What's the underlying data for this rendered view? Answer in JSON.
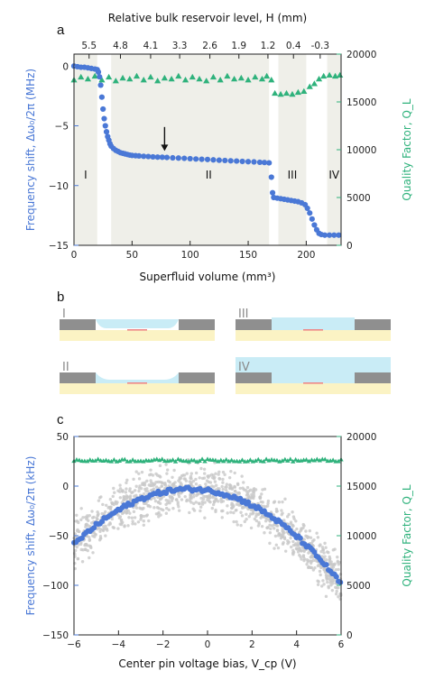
{
  "colors": {
    "blue": "#4a78d6",
    "green": "#2fb27c",
    "grey_scatter": "#c8c8c8",
    "region_fill": "#efefe9",
    "substrate": "#fbf3c4",
    "metal": "#8f8f8f",
    "helium": "#c9ecf6",
    "pin": "#ee8888"
  },
  "panel_letters": {
    "a": "a",
    "b": "b",
    "c": "c"
  },
  "chart_data": [
    {
      "type": "scatter",
      "panel": "a",
      "title": "",
      "xlabel": "Superfluid volume (mm³)",
      "ylabel": "Frequency shift, Δω₀/2π (MHz)",
      "y2label": "Quality Factor, Q_L",
      "toplabel": "Relative bulk reservoir level, H (mm)",
      "xlim": [
        0,
        230
      ],
      "ylim": [
        -15,
        1
      ],
      "y2lim": [
        0,
        20000
      ],
      "xticks": [
        0,
        50,
        100,
        150,
        200
      ],
      "xtick_labels": [
        "0",
        "50",
        "100",
        "150",
        "200"
      ],
      "yticks": [
        0,
        -5,
        -10,
        -15
      ],
      "ytick_labels": [
        "0",
        "−5",
        "−10",
        "−15"
      ],
      "y2ticks": [
        0,
        5000,
        10000,
        15000,
        20000
      ],
      "y2tick_labels": [
        "0",
        "5000",
        "10000",
        "15000",
        "20000"
      ],
      "top_ticks": [
        {
          "x": 13,
          "label": "5.5"
        },
        {
          "x": 40,
          "label": "4.8"
        },
        {
          "x": 66,
          "label": "4.1"
        },
        {
          "x": 91,
          "label": "3.3"
        },
        {
          "x": 117,
          "label": "2.6"
        },
        {
          "x": 142,
          "label": "1.9"
        },
        {
          "x": 167,
          "label": "1.2"
        },
        {
          "x": 189,
          "label": "0.4"
        },
        {
          "x": 212,
          "label": "-0.3"
        }
      ],
      "regions": [
        {
          "label": "I",
          "x0": 0,
          "x1": 20,
          "label_x": 10,
          "label_y": -9.4
        },
        {
          "label": "II",
          "x0": 32,
          "x1": 168,
          "label_x": 116,
          "label_y": -9.4
        },
        {
          "label": "III",
          "x0": 176,
          "x1": 200,
          "label_x": 188,
          "label_y": -9.4
        },
        {
          "label": "IV",
          "x0": 218,
          "x1": 230,
          "label_x": 224,
          "label_y": -9.4
        }
      ],
      "arrow": {
        "x": 78,
        "y_tail": -5.1,
        "y_head": -7.1
      },
      "series": [
        {
          "name": "",
          "axis": "left",
          "color": "blue",
          "marker": "circle",
          "points": [
            [
              0,
              0
            ],
            [
              3,
              -0.05
            ],
            [
              6,
              -0.1
            ],
            [
              9,
              -0.1
            ],
            [
              12,
              -0.15
            ],
            [
              15,
              -0.2
            ],
            [
              18,
              -0.25
            ],
            [
              20,
              -0.3
            ],
            [
              21,
              -0.5
            ],
            [
              22,
              -0.9
            ],
            [
              23,
              -1.6
            ],
            [
              24,
              -2.6
            ],
            [
              25,
              -3.6
            ],
            [
              26,
              -4.4
            ],
            [
              27,
              -5.0
            ],
            [
              28,
              -5.5
            ],
            [
              29,
              -5.9
            ],
            [
              30,
              -6.2
            ],
            [
              31,
              -6.5
            ],
            [
              32,
              -6.7
            ],
            [
              34,
              -6.9
            ],
            [
              36,
              -7.05
            ],
            [
              38,
              -7.15
            ],
            [
              40,
              -7.25
            ],
            [
              42,
              -7.3
            ],
            [
              44,
              -7.35
            ],
            [
              46,
              -7.4
            ],
            [
              48,
              -7.45
            ],
            [
              50,
              -7.48
            ],
            [
              53,
              -7.5
            ],
            [
              56,
              -7.52
            ],
            [
              60,
              -7.55
            ],
            [
              64,
              -7.57
            ],
            [
              68,
              -7.6
            ],
            [
              72,
              -7.62
            ],
            [
              76,
              -7.63
            ],
            [
              80,
              -7.65
            ],
            [
              85,
              -7.68
            ],
            [
              90,
              -7.7
            ],
            [
              95,
              -7.72
            ],
            [
              100,
              -7.75
            ],
            [
              105,
              -7.78
            ],
            [
              110,
              -7.8
            ],
            [
              115,
              -7.82
            ],
            [
              120,
              -7.85
            ],
            [
              125,
              -7.88
            ],
            [
              130,
              -7.9
            ],
            [
              135,
              -7.93
            ],
            [
              140,
              -7.95
            ],
            [
              145,
              -7.98
            ],
            [
              150,
              -8.0
            ],
            [
              155,
              -8.02
            ],
            [
              160,
              -8.05
            ],
            [
              164,
              -8.07
            ],
            [
              168,
              -8.1
            ],
            [
              170,
              -9.3
            ],
            [
              171,
              -10.6
            ],
            [
              172,
              -11.0
            ],
            [
              175,
              -11.05
            ],
            [
              178,
              -11.1
            ],
            [
              181,
              -11.15
            ],
            [
              184,
              -11.2
            ],
            [
              187,
              -11.25
            ],
            [
              190,
              -11.3
            ],
            [
              193,
              -11.35
            ],
            [
              196,
              -11.45
            ],
            [
              199,
              -11.6
            ],
            [
              201,
              -11.9
            ],
            [
              203,
              -12.3
            ],
            [
              205,
              -12.8
            ],
            [
              207,
              -13.3
            ],
            [
              209,
              -13.7
            ],
            [
              211,
              -14.0
            ],
            [
              213,
              -14.1
            ],
            [
              216,
              -14.15
            ],
            [
              220,
              -14.15
            ],
            [
              224,
              -14.15
            ],
            [
              228,
              -14.15
            ]
          ]
        },
        {
          "name": "",
          "axis": "right",
          "color": "green",
          "marker": "triangle",
          "points": [
            [
              0,
              17300
            ],
            [
              6,
              17600
            ],
            [
              12,
              17400
            ],
            [
              18,
              17700
            ],
            [
              24,
              17300
            ],
            [
              30,
              17600
            ],
            [
              36,
              17200
            ],
            [
              42,
              17500
            ],
            [
              48,
              17400
            ],
            [
              54,
              17700
            ],
            [
              60,
              17300
            ],
            [
              66,
              17600
            ],
            [
              72,
              17200
            ],
            [
              78,
              17500
            ],
            [
              84,
              17400
            ],
            [
              90,
              17700
            ],
            [
              96,
              17300
            ],
            [
              102,
              17600
            ],
            [
              108,
              17400
            ],
            [
              114,
              17200
            ],
            [
              120,
              17600
            ],
            [
              126,
              17300
            ],
            [
              132,
              17700
            ],
            [
              138,
              17400
            ],
            [
              144,
              17500
            ],
            [
              150,
              17300
            ],
            [
              156,
              17600
            ],
            [
              162,
              17400
            ],
            [
              166,
              17700
            ],
            [
              170,
              17300
            ],
            [
              173,
              15900
            ],
            [
              178,
              15800
            ],
            [
              183,
              15900
            ],
            [
              188,
              15800
            ],
            [
              193,
              16000
            ],
            [
              198,
              16100
            ],
            [
              203,
              16600
            ],
            [
              207,
              16900
            ],
            [
              211,
              17400
            ],
            [
              215,
              17700
            ],
            [
              220,
              17800
            ],
            [
              225,
              17700
            ],
            [
              229,
              17800
            ]
          ]
        }
      ]
    },
    {
      "type": "scatter",
      "panel": "c",
      "title": "",
      "xlabel": "Center pin voltage bias, V_cp (V)",
      "ylabel": "Frequency shift, Δω₀/2π (kHz)",
      "y2label": "Quality Factor, Q_L",
      "xlim": [
        -6,
        6
      ],
      "ylim": [
        -150,
        50
      ],
      "y2lim": [
        0,
        20000
      ],
      "xticks": [
        -6,
        -4,
        -2,
        0,
        2,
        4,
        6
      ],
      "xtick_labels": [
        "−6",
        "−4",
        "−2",
        "0",
        "2",
        "4",
        "6"
      ],
      "yticks": [
        50,
        0,
        -50,
        -100,
        -150
      ],
      "ytick_labels": [
        "50",
        "0",
        "−50",
        "−100",
        "−150"
      ],
      "y2ticks": [
        0,
        5000,
        10000,
        15000,
        20000
      ],
      "y2tick_labels": [
        "0",
        "5000",
        "10000",
        "15000",
        "20000"
      ],
      "fit": {
        "vertex_x": -0.8,
        "vertex_y": -3,
        "curvature": 2.07
      },
      "raw_scatter": {
        "spread": 22
      },
      "series": [
        {
          "name": "",
          "axis": "left",
          "color": "blue",
          "marker": "circle",
          "description_from_fit": true
        },
        {
          "name": "",
          "axis": "right",
          "color": "green",
          "marker": "triangle",
          "value": 17600
        }
      ]
    }
  ],
  "diagram": {
    "panels": [
      {
        "label": "I",
        "fill": "low"
      },
      {
        "label": "III",
        "fill": "level"
      },
      {
        "label": "II",
        "fill": "partial"
      },
      {
        "label": "IV",
        "fill": "full"
      }
    ]
  }
}
